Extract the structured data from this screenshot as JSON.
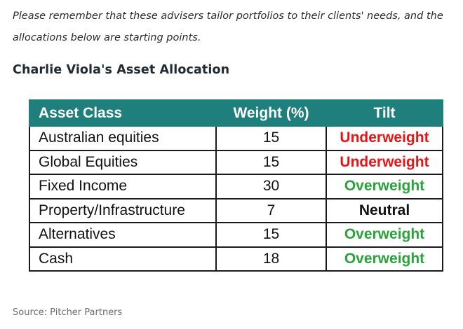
{
  "intro": "Please remember that these advisers tailor portfolios to their clients' needs, and the allocations below are starting points.",
  "heading": "Charlie Viola's Asset Allocation",
  "table": {
    "headers": {
      "asset_class": "Asset Class",
      "weight": "Weight (%)",
      "tilt": "Tilt"
    },
    "rows": [
      {
        "asset_class": "Australian equities",
        "weight": "15",
        "tilt": "Underweight"
      },
      {
        "asset_class": "Global Equities",
        "weight": "15",
        "tilt": "Underweight"
      },
      {
        "asset_class": "Fixed Income",
        "weight": "30",
        "tilt": "Overweight"
      },
      {
        "asset_class": "Property/Infrastructure",
        "weight": "7",
        "tilt": "Neutral"
      },
      {
        "asset_class": "Alternatives",
        "weight": "15",
        "tilt": "Overweight"
      },
      {
        "asset_class": "Cash",
        "weight": "18",
        "tilt": "Overweight"
      }
    ]
  },
  "colors": {
    "header_bg": "#1f7f7d",
    "underweight": "#e81414",
    "overweight": "#2aa33a",
    "neutral": "#111111"
  },
  "source": "Source: Pitcher Partners"
}
